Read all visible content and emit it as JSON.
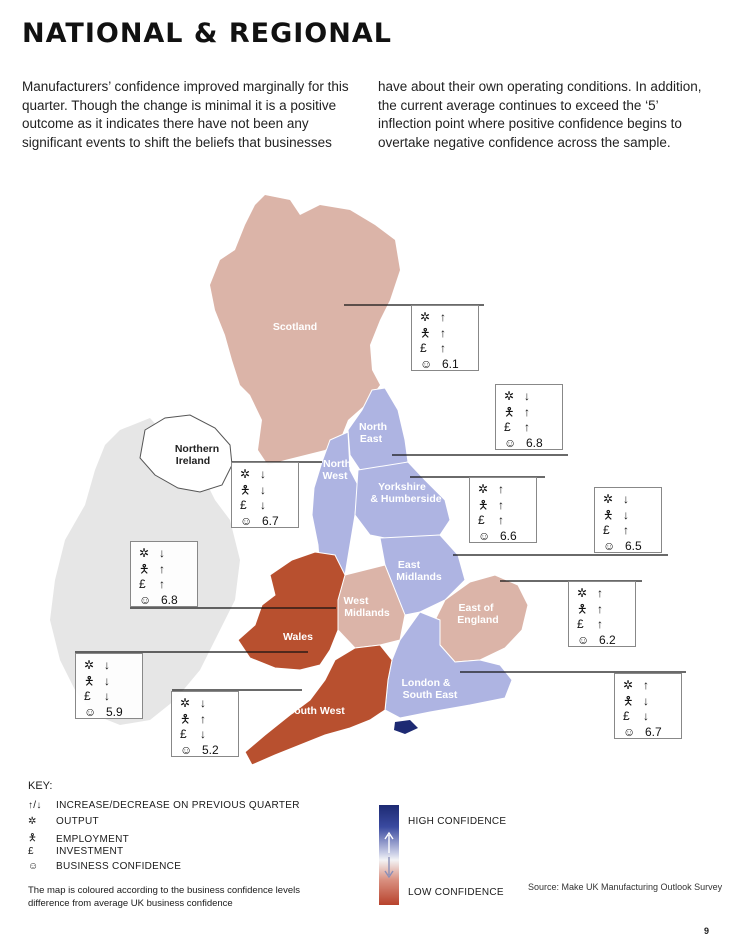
{
  "title": "NATIONAL & REGIONAL",
  "intro": "Manufacturers’ confidence improved marginally for this quarter. Though the change is minimal it is a positive outcome as it indicates there have not been any significant events to shift the beliefs that businesses have about their own operating conditions. In addition, the current average continues to exceed the ‘5’ inflection point where positive confidence begins to overtake negative confidence across the sample.",
  "colors": {
    "positive_region": "#aeb4e2",
    "slight_positive": "#dbb4a8",
    "negative_region": "#b8502f",
    "neutral_region": "#ffffff",
    "ireland": "#e6e6e6"
  },
  "regions": [
    {
      "name": "Scotland",
      "output": "up",
      "employment": "up",
      "investment": "up",
      "confidence": "6.1"
    },
    {
      "name": "North East",
      "output": "down",
      "employment": "up",
      "investment": "up",
      "confidence": "6.8"
    },
    {
      "name": "Yorkshire & Humberside",
      "output": "up",
      "employment": "up",
      "investment": "up",
      "confidence": "6.6"
    },
    {
      "name": "East Midlands",
      "output": "down",
      "employment": "down",
      "investment": "up",
      "confidence": "6.5"
    },
    {
      "name": "North West",
      "output": "down",
      "employment": "down",
      "investment": "down",
      "confidence": "6.7"
    },
    {
      "name": "West Midlands",
      "output": "down",
      "employment": "up",
      "investment": "up",
      "confidence": "6.8"
    },
    {
      "name": "East of England",
      "output": "up",
      "employment": "up",
      "investment": "up",
      "confidence": "6.2"
    },
    {
      "name": "Wales",
      "output": "down",
      "employment": "down",
      "investment": "down",
      "confidence": "5.9"
    },
    {
      "name": "South West",
      "output": "down",
      "employment": "up",
      "investment": "down",
      "confidence": "5.2"
    },
    {
      "name": "London & South East",
      "output": "up",
      "employment": "down",
      "investment": "down",
      "confidence": "6.7"
    }
  ],
  "map_labels": {
    "scotland": "Scotland",
    "northern_ireland_1": "Northern",
    "northern_ireland_2": "Ireland",
    "north_east_1": "North",
    "north_east_2": "East",
    "north_west_1": "North",
    "north_west_2": "West",
    "yorkshire_1": "Yorkshire",
    "yorkshire_2": "& Humberside",
    "east_midlands_1": "East",
    "east_midlands_2": "Midlands",
    "west_midlands_1": "West",
    "west_midlands_2": "Midlands",
    "east_of_england_1": "East of",
    "east_of_england_2": "England",
    "wales": "Wales",
    "london_1": "London &",
    "london_2": "South East",
    "south_west": "South West"
  },
  "symbols": {
    "output": "✲",
    "employment": "🯅",
    "investment": "£",
    "confidence": "☺",
    "up": "↑",
    "down": "↓",
    "up_down": "↑/↓"
  },
  "key": {
    "title": "KEY:",
    "change": "INCREASE/DECREASE ON PREVIOUS QUARTER",
    "output": "OUTPUT",
    "employment": "EMPLOYMENT",
    "investment": "INVESTMENT",
    "confidence": "BUSINESS CONFIDENCE",
    "note": "The map is coloured according to the business confidence levels difference from average UK business confidence"
  },
  "scale": {
    "high": "HIGH CONFIDENCE",
    "low": "LOW CONFIDENCE"
  },
  "source": "Source: Make UK Manufacturing Outlook Survey",
  "page_number": "9"
}
